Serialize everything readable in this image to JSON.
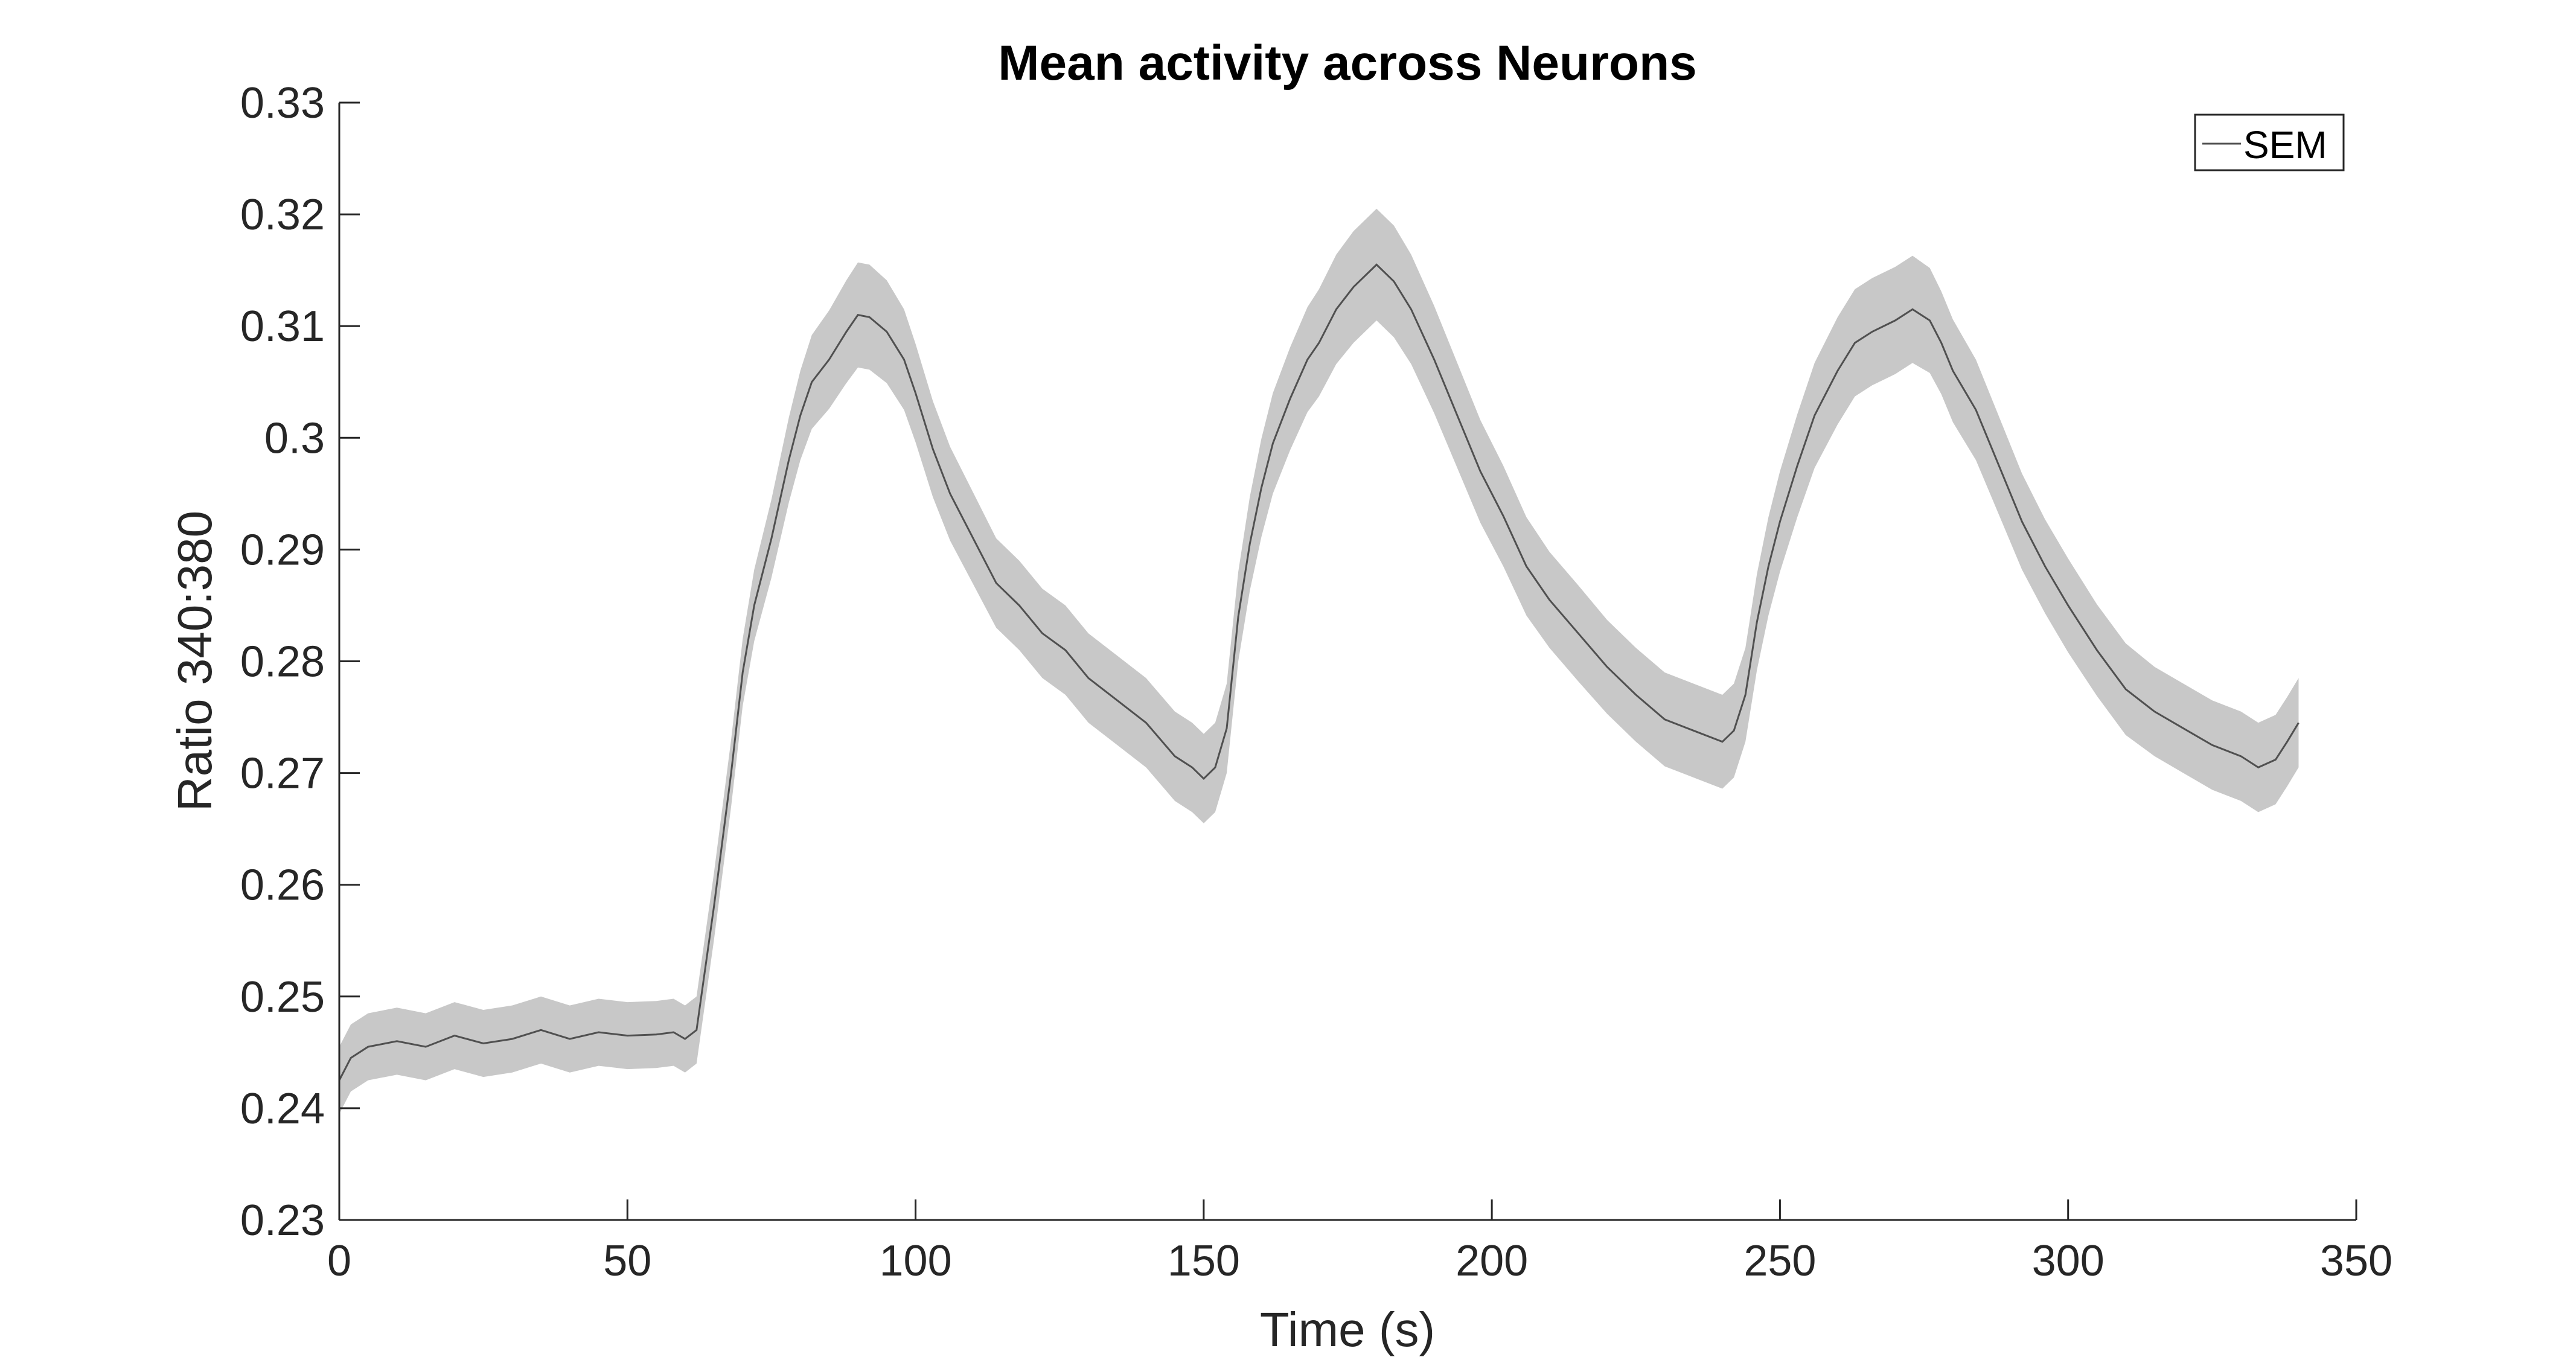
{
  "chart_data": {
    "type": "line",
    "title": "Mean activity across Neurons",
    "xlabel": "Time (s)",
    "ylabel": "Ratio 340:380",
    "xlim": [
      0,
      350
    ],
    "ylim": [
      0.23,
      0.33
    ],
    "xticks": [
      "0",
      "50",
      "100",
      "150",
      "200",
      "250",
      "300",
      "350"
    ],
    "yticks": [
      "0.23",
      "0.24",
      "0.25",
      "0.26",
      "0.27",
      "0.28",
      "0.29",
      "0.3",
      "0.31",
      "0.32",
      "0.33"
    ],
    "grid": false,
    "legend": {
      "position": "top-right",
      "entries": [
        "SEM"
      ]
    },
    "colors": {
      "line": "#505050",
      "band": "#c8c8c8",
      "axis": "#262626"
    },
    "series": [
      {
        "name": "SEM",
        "x": [
          0,
          2,
          5,
          10,
          15,
          20,
          25,
          30,
          35,
          40,
          45,
          50,
          55,
          58,
          60,
          62,
          65,
          68,
          70,
          72,
          75,
          78,
          80,
          82,
          85,
          88,
          90,
          92,
          95,
          98,
          100,
          103,
          106,
          110,
          114,
          118,
          122,
          126,
          130,
          135,
          140,
          145,
          148,
          150,
          152,
          154,
          156,
          158,
          160,
          162,
          165,
          168,
          170,
          173,
          176,
          180,
          183,
          186,
          190,
          194,
          198,
          202,
          206,
          210,
          215,
          220,
          225,
          230,
          235,
          240,
          242,
          244,
          246,
          248,
          250,
          253,
          256,
          260,
          263,
          266,
          270,
          273,
          276,
          278,
          280,
          284,
          288,
          292,
          296,
          300,
          305,
          310,
          315,
          320,
          325,
          330,
          333,
          336,
          338,
          340
        ],
        "y": [
          0.2425,
          0.2445,
          0.2455,
          0.246,
          0.2455,
          0.2465,
          0.2458,
          0.2462,
          0.247,
          0.2462,
          0.2468,
          0.2465,
          0.2466,
          0.2468,
          0.2462,
          0.247,
          0.258,
          0.27,
          0.279,
          0.285,
          0.291,
          0.298,
          0.302,
          0.305,
          0.307,
          0.3095,
          0.311,
          0.3108,
          0.3095,
          0.307,
          0.304,
          0.299,
          0.295,
          0.291,
          0.287,
          0.285,
          0.2825,
          0.281,
          0.2785,
          0.2765,
          0.2745,
          0.2715,
          0.2705,
          0.2695,
          0.2705,
          0.274,
          0.284,
          0.2905,
          0.2955,
          0.2995,
          0.3035,
          0.307,
          0.3085,
          0.3115,
          0.3135,
          0.3155,
          0.314,
          0.3115,
          0.307,
          0.302,
          0.297,
          0.293,
          0.2885,
          0.2855,
          0.2825,
          0.2795,
          0.277,
          0.2748,
          0.2738,
          0.2728,
          0.2738,
          0.277,
          0.2835,
          0.2885,
          0.2925,
          0.2975,
          0.302,
          0.306,
          0.3085,
          0.3095,
          0.3105,
          0.3115,
          0.3105,
          0.3085,
          0.306,
          0.3025,
          0.2975,
          0.2925,
          0.2885,
          0.285,
          0.281,
          0.2775,
          0.2755,
          0.274,
          0.2725,
          0.2715,
          0.2705,
          0.2712,
          0.2728,
          0.2745
        ],
        "sem": [
          0.003,
          0.003,
          0.003,
          0.003,
          0.003,
          0.003,
          0.003,
          0.003,
          0.003,
          0.003,
          0.003,
          0.003,
          0.003,
          0.003,
          0.003,
          0.003,
          0.003,
          0.003,
          0.003,
          0.0032,
          0.0035,
          0.0038,
          0.004,
          0.0042,
          0.0044,
          0.0046,
          0.0047,
          0.0047,
          0.0046,
          0.0045,
          0.0044,
          0.0043,
          0.0042,
          0.0041,
          0.004,
          0.004,
          0.004,
          0.004,
          0.004,
          0.004,
          0.004,
          0.004,
          0.004,
          0.004,
          0.004,
          0.004,
          0.004,
          0.0042,
          0.0044,
          0.0045,
          0.0046,
          0.0047,
          0.0048,
          0.0049,
          0.005,
          0.005,
          0.005,
          0.0049,
          0.0048,
          0.0047,
          0.0046,
          0.0045,
          0.0044,
          0.0043,
          0.0043,
          0.0042,
          0.0042,
          0.0042,
          0.0042,
          0.0042,
          0.0042,
          0.0042,
          0.0043,
          0.0044,
          0.0045,
          0.0046,
          0.0047,
          0.0048,
          0.0048,
          0.0048,
          0.0048,
          0.0048,
          0.0047,
          0.0046,
          0.0046,
          0.0045,
          0.0044,
          0.0043,
          0.0042,
          0.0042,
          0.0041,
          0.0041,
          0.004,
          0.004,
          0.004,
          0.004,
          0.004,
          0.004,
          0.004,
          0.004
        ]
      }
    ]
  }
}
